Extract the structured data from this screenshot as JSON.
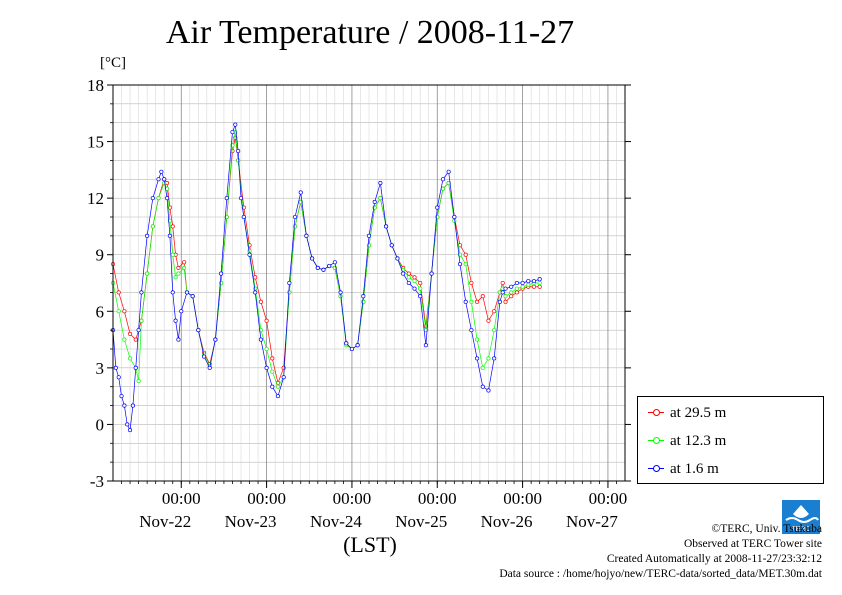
{
  "chart_data": {
    "type": "line",
    "title": "Air Temperature / 2008-11-27",
    "ylabel": "[°C]",
    "xlabel": "(LST)",
    "ylim": [
      -3,
      18
    ],
    "yticks": [
      "-3",
      "0",
      "3",
      "6",
      "9",
      "12",
      "15",
      "18"
    ],
    "xlim_hours": [
      -12,
      168
    ],
    "xticks": [
      {
        "hour": 12,
        "time": "00:00",
        "date": "Nov-22"
      },
      {
        "hour": 42,
        "time": "00:00",
        "date": "Nov-23"
      },
      {
        "hour": 72,
        "time": "00:00",
        "date": "Nov-24"
      },
      {
        "hour": 102,
        "time": "00:00",
        "date": "Nov-25"
      },
      {
        "hour": 132,
        "time": "00:00",
        "date": "Nov-26"
      },
      {
        "hour": 162,
        "time": "00:00",
        "date": "Nov-27"
      }
    ],
    "grid": true,
    "legend_position": "bottom-right",
    "series": [
      {
        "name": "at 29.5 m",
        "color": "#ff0000",
        "anchors": [
          [
            -12,
            8.5
          ],
          [
            -10,
            7.0
          ],
          [
            -8,
            6.0
          ],
          [
            -6,
            4.8
          ],
          [
            -4,
            4.5
          ],
          [
            -2,
            5.5
          ],
          [
            0,
            8.0
          ],
          [
            2,
            10.5
          ],
          [
            4,
            12.0
          ],
          [
            6,
            13.0
          ],
          [
            7,
            12.8
          ],
          [
            8,
            11.5
          ],
          [
            9,
            10.5
          ],
          [
            10,
            9.0
          ],
          [
            11,
            8.3
          ],
          [
            13,
            8.6
          ],
          [
            14,
            7.0
          ],
          [
            16,
            6.8
          ],
          [
            18,
            5.0
          ],
          [
            20,
            3.8
          ],
          [
            22,
            3.2
          ],
          [
            24,
            4.5
          ],
          [
            26,
            7.5
          ],
          [
            28,
            11.0
          ],
          [
            30,
            14.5
          ],
          [
            31,
            15.2
          ],
          [
            32,
            14.0
          ],
          [
            34,
            11.5
          ],
          [
            36,
            9.5
          ],
          [
            38,
            7.8
          ],
          [
            40,
            6.5
          ],
          [
            42,
            5.5
          ],
          [
            44,
            3.5
          ],
          [
            46,
            2.2
          ],
          [
            48,
            3.0
          ],
          [
            50,
            7.0
          ],
          [
            52,
            10.5
          ],
          [
            54,
            11.8
          ],
          [
            56,
            10.0
          ],
          [
            58,
            8.8
          ],
          [
            60,
            8.3
          ],
          [
            62,
            8.2
          ],
          [
            64,
            8.4
          ],
          [
            66,
            8.3
          ],
          [
            68,
            6.8
          ],
          [
            70,
            4.3
          ],
          [
            72,
            4.0
          ],
          [
            74,
            4.2
          ],
          [
            76,
            6.5
          ],
          [
            78,
            9.5
          ],
          [
            80,
            11.5
          ],
          [
            82,
            12.0
          ],
          [
            84,
            10.5
          ],
          [
            86,
            9.5
          ],
          [
            88,
            8.8
          ],
          [
            90,
            8.3
          ],
          [
            92,
            8.0
          ],
          [
            94,
            7.8
          ],
          [
            96,
            7.5
          ],
          [
            98,
            5.2
          ],
          [
            100,
            8.0
          ],
          [
            102,
            11.0
          ],
          [
            104,
            12.5
          ],
          [
            106,
            12.8
          ],
          [
            108,
            11.0
          ],
          [
            110,
            9.5
          ],
          [
            112,
            9.0
          ],
          [
            114,
            7.5
          ],
          [
            116,
            6.5
          ],
          [
            118,
            6.8
          ],
          [
            120,
            5.5
          ],
          [
            122,
            6.0
          ],
          [
            124,
            7.0
          ],
          [
            125,
            7.5
          ],
          [
            126,
            6.5
          ],
          [
            128,
            6.8
          ],
          [
            130,
            7.0
          ],
          [
            132,
            7.2
          ],
          [
            134,
            7.3
          ],
          [
            136,
            7.3
          ],
          [
            138,
            7.3
          ]
        ]
      },
      {
        "name": "at 12.3 m",
        "color": "#00ff00",
        "anchors": [
          [
            -12,
            7.5
          ],
          [
            -10,
            6.0
          ],
          [
            -8,
            4.5
          ],
          [
            -6,
            3.5
          ],
          [
            -4,
            3.0
          ],
          [
            -3,
            2.3
          ],
          [
            -2,
            5.5
          ],
          [
            0,
            8.0
          ],
          [
            2,
            10.5
          ],
          [
            4,
            12.0
          ],
          [
            6,
            12.8
          ],
          [
            7,
            12.5
          ],
          [
            8,
            10.8
          ],
          [
            9,
            9.0
          ],
          [
            10,
            7.8
          ],
          [
            11,
            8.0
          ],
          [
            13,
            8.3
          ],
          [
            14,
            7.0
          ],
          [
            16,
            6.8
          ],
          [
            18,
            5.0
          ],
          [
            20,
            3.7
          ],
          [
            22,
            3.1
          ],
          [
            24,
            4.5
          ],
          [
            26,
            7.5
          ],
          [
            28,
            11.0
          ],
          [
            30,
            14.8
          ],
          [
            31,
            15.5
          ],
          [
            32,
            14.0
          ],
          [
            34,
            11.0
          ],
          [
            36,
            9.2
          ],
          [
            38,
            7.2
          ],
          [
            40,
            5.0
          ],
          [
            42,
            4.0
          ],
          [
            44,
            2.8
          ],
          [
            46,
            2.0
          ],
          [
            48,
            2.5
          ],
          [
            50,
            7.0
          ],
          [
            52,
            10.5
          ],
          [
            54,
            11.8
          ],
          [
            56,
            10.0
          ],
          [
            58,
            8.8
          ],
          [
            60,
            8.3
          ],
          [
            62,
            8.2
          ],
          [
            64,
            8.4
          ],
          [
            66,
            8.3
          ],
          [
            68,
            6.8
          ],
          [
            70,
            4.2
          ],
          [
            72,
            4.0
          ],
          [
            74,
            4.2
          ],
          [
            76,
            6.5
          ],
          [
            78,
            9.5
          ],
          [
            80,
            11.5
          ],
          [
            82,
            12.0
          ],
          [
            84,
            10.5
          ],
          [
            86,
            9.5
          ],
          [
            88,
            8.8
          ],
          [
            90,
            8.2
          ],
          [
            92,
            7.8
          ],
          [
            94,
            7.6
          ],
          [
            96,
            7.2
          ],
          [
            98,
            5.0
          ],
          [
            100,
            8.0
          ],
          [
            102,
            11.0
          ],
          [
            104,
            12.5
          ],
          [
            106,
            12.8
          ],
          [
            108,
            10.8
          ],
          [
            110,
            9.0
          ],
          [
            112,
            8.5
          ],
          [
            114,
            6.5
          ],
          [
            116,
            4.5
          ],
          [
            118,
            3.0
          ],
          [
            120,
            3.5
          ],
          [
            122,
            5.0
          ],
          [
            124,
            7.0
          ],
          [
            125,
            7.2
          ],
          [
            126,
            6.8
          ],
          [
            128,
            7.0
          ],
          [
            130,
            7.2
          ],
          [
            132,
            7.3
          ],
          [
            134,
            7.4
          ],
          [
            136,
            7.5
          ],
          [
            138,
            7.5
          ]
        ]
      },
      {
        "name": "at 1.6 m",
        "color": "#0000ff",
        "anchors": [
          [
            -12,
            5.0
          ],
          [
            -11,
            3.0
          ],
          [
            -10,
            2.5
          ],
          [
            -9,
            1.5
          ],
          [
            -8,
            1.0
          ],
          [
            -7,
            0.0
          ],
          [
            -6,
            -0.3
          ],
          [
            -5,
            1.0
          ],
          [
            -4,
            3.0
          ],
          [
            -3,
            5.0
          ],
          [
            -2,
            7.0
          ],
          [
            0,
            10.0
          ],
          [
            2,
            12.0
          ],
          [
            4,
            13.0
          ],
          [
            5,
            13.4
          ],
          [
            6,
            13.0
          ],
          [
            7,
            12.0
          ],
          [
            8,
            10.0
          ],
          [
            9,
            7.0
          ],
          [
            10,
            5.5
          ],
          [
            11,
            4.5
          ],
          [
            12,
            6.0
          ],
          [
            14,
            7.0
          ],
          [
            16,
            6.8
          ],
          [
            18,
            5.0
          ],
          [
            20,
            3.6
          ],
          [
            22,
            3.0
          ],
          [
            24,
            4.5
          ],
          [
            26,
            8.0
          ],
          [
            28,
            12.0
          ],
          [
            30,
            15.5
          ],
          [
            31,
            15.9
          ],
          [
            32,
            14.5
          ],
          [
            33,
            12.0
          ],
          [
            34,
            11.0
          ],
          [
            36,
            9.0
          ],
          [
            38,
            7.0
          ],
          [
            40,
            4.5
          ],
          [
            42,
            3.0
          ],
          [
            44,
            2.0
          ],
          [
            46,
            1.5
          ],
          [
            48,
            2.5
          ],
          [
            50,
            7.5
          ],
          [
            52,
            11.0
          ],
          [
            54,
            12.3
          ],
          [
            56,
            10.0
          ],
          [
            58,
            8.8
          ],
          [
            60,
            8.3
          ],
          [
            62,
            8.2
          ],
          [
            64,
            8.4
          ],
          [
            66,
            8.6
          ],
          [
            68,
            7.0
          ],
          [
            70,
            4.3
          ],
          [
            72,
            4.0
          ],
          [
            74,
            4.2
          ],
          [
            76,
            6.8
          ],
          [
            78,
            10.0
          ],
          [
            80,
            11.8
          ],
          [
            82,
            12.8
          ],
          [
            84,
            10.5
          ],
          [
            86,
            9.5
          ],
          [
            88,
            8.8
          ],
          [
            90,
            8.0
          ],
          [
            92,
            7.5
          ],
          [
            94,
            7.2
          ],
          [
            96,
            6.8
          ],
          [
            98,
            4.2
          ],
          [
            100,
            8.0
          ],
          [
            102,
            11.5
          ],
          [
            104,
            13.0
          ],
          [
            106,
            13.4
          ],
          [
            108,
            11.0
          ],
          [
            110,
            8.5
          ],
          [
            112,
            6.5
          ],
          [
            114,
            5.0
          ],
          [
            116,
            3.5
          ],
          [
            118,
            2.0
          ],
          [
            120,
            1.8
          ],
          [
            122,
            3.5
          ],
          [
            124,
            6.5
          ],
          [
            125,
            7.0
          ],
          [
            126,
            7.2
          ],
          [
            128,
            7.3
          ],
          [
            130,
            7.5
          ],
          [
            132,
            7.5
          ],
          [
            134,
            7.6
          ],
          [
            136,
            7.6
          ],
          [
            138,
            7.7
          ]
        ]
      }
    ]
  },
  "credits": {
    "copyright": "©TERC, Univ. Tsukuba",
    "observed": "Observed at TERC Tower site",
    "created": "Created Automatically at 2008-11-27/23:32:12",
    "source": "Data source : /home/hojyo/new/TERC-data/sorted_data/MET.30m.dat"
  },
  "logo": {
    "text": "TERC"
  }
}
